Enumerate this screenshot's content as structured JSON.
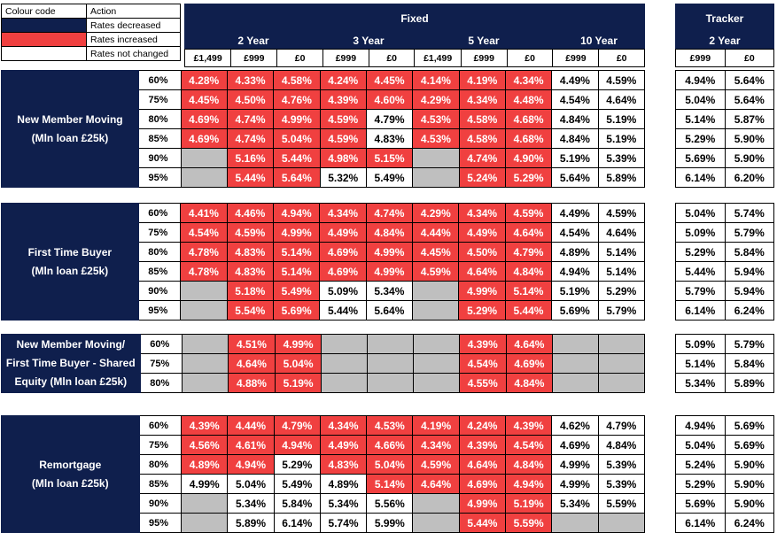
{
  "legend": {
    "header_code": "Colour code",
    "header_action": "Action",
    "rows": [
      {
        "color": "#0f1f4d",
        "label": "Rates decreased"
      },
      {
        "color": "#f04040",
        "label": "Rates increased"
      },
      {
        "color": "#ffffff",
        "label": "Rates not changed"
      }
    ]
  },
  "fixed_title": "Fixed",
  "tracker_title": "Tracker",
  "terms": [
    "2 Year",
    "3 Year",
    "5 Year",
    "10 Year"
  ],
  "tracker_term": "2 Year",
  "fees": [
    "£1,499",
    "£999",
    "£0",
    "£999",
    "£0",
    "£1,499",
    "£999",
    "£0",
    "£999",
    "£0"
  ],
  "tracker_fees": [
    "£999",
    "£0"
  ],
  "sections": [
    {
      "title_line1": "New Member Moving",
      "title_line2": "(Mln loan £25k)",
      "title_line3": "",
      "rows": [
        {
          "ltv": "60%",
          "fixed": [
            [
              "4.28%",
              "r"
            ],
            [
              "4.33%",
              "r"
            ],
            [
              "4.58%",
              "r"
            ],
            [
              "4.24%",
              "r"
            ],
            [
              "4.45%",
              "r"
            ],
            [
              "4.14%",
              "r"
            ],
            [
              "4.19%",
              "r"
            ],
            [
              "4.34%",
              "r"
            ],
            [
              "4.49%",
              "w"
            ],
            [
              "4.59%",
              "w"
            ]
          ],
          "tracker": [
            "4.94%",
            "5.64%"
          ]
        },
        {
          "ltv": "75%",
          "fixed": [
            [
              "4.45%",
              "r"
            ],
            [
              "4.50%",
              "r"
            ],
            [
              "4.76%",
              "r"
            ],
            [
              "4.39%",
              "r"
            ],
            [
              "4.60%",
              "r"
            ],
            [
              "4.29%",
              "r"
            ],
            [
              "4.34%",
              "r"
            ],
            [
              "4.48%",
              "r"
            ],
            [
              "4.54%",
              "w"
            ],
            [
              "4.64%",
              "w"
            ]
          ],
          "tracker": [
            "5.04%",
            "5.64%"
          ]
        },
        {
          "ltv": "80%",
          "fixed": [
            [
              "4.69%",
              "r"
            ],
            [
              "4.74%",
              "r"
            ],
            [
              "4.99%",
              "r"
            ],
            [
              "4.59%",
              "r"
            ],
            [
              "4.79%",
              "w"
            ],
            [
              "4.53%",
              "r"
            ],
            [
              "4.58%",
              "r"
            ],
            [
              "4.68%",
              "r"
            ],
            [
              "4.84%",
              "w"
            ],
            [
              "5.19%",
              "w"
            ]
          ],
          "tracker": [
            "5.14%",
            "5.87%"
          ]
        },
        {
          "ltv": "85%",
          "fixed": [
            [
              "4.69%",
              "r"
            ],
            [
              "4.74%",
              "r"
            ],
            [
              "5.04%",
              "r"
            ],
            [
              "4.59%",
              "r"
            ],
            [
              "4.83%",
              "w"
            ],
            [
              "4.53%",
              "r"
            ],
            [
              "4.58%",
              "r"
            ],
            [
              "4.68%",
              "r"
            ],
            [
              "4.84%",
              "w"
            ],
            [
              "5.19%",
              "w"
            ]
          ],
          "tracker": [
            "5.29%",
            "5.90%"
          ]
        },
        {
          "ltv": "90%",
          "fixed": [
            [
              "",
              "g"
            ],
            [
              "5.16%",
              "r"
            ],
            [
              "5.44%",
              "r"
            ],
            [
              "4.98%",
              "r"
            ],
            [
              "5.15%",
              "r"
            ],
            [
              "",
              "g"
            ],
            [
              "4.74%",
              "r"
            ],
            [
              "4.90%",
              "r"
            ],
            [
              "5.19%",
              "w"
            ],
            [
              "5.39%",
              "w"
            ]
          ],
          "tracker": [
            "5.69%",
            "5.90%"
          ]
        },
        {
          "ltv": "95%",
          "fixed": [
            [
              "",
              "g"
            ],
            [
              "5.44%",
              "r"
            ],
            [
              "5.64%",
              "r"
            ],
            [
              "5.32%",
              "w"
            ],
            [
              "5.49%",
              "w"
            ],
            [
              "",
              "g"
            ],
            [
              "5.24%",
              "r"
            ],
            [
              "5.29%",
              "r"
            ],
            [
              "5.64%",
              "w"
            ],
            [
              "5.89%",
              "w"
            ]
          ],
          "tracker": [
            "6.14%",
            "6.20%"
          ]
        }
      ]
    },
    {
      "title_line1": "First Time Buyer",
      "title_line2": "(Mln loan £25k)",
      "title_line3": "",
      "rows": [
        {
          "ltv": "60%",
          "fixed": [
            [
              "4.41%",
              "r"
            ],
            [
              "4.46%",
              "r"
            ],
            [
              "4.94%",
              "r"
            ],
            [
              "4.34%",
              "r"
            ],
            [
              "4.74%",
              "r"
            ],
            [
              "4.29%",
              "r"
            ],
            [
              "4.34%",
              "r"
            ],
            [
              "4.59%",
              "r"
            ],
            [
              "4.49%",
              "w"
            ],
            [
              "4.59%",
              "w"
            ]
          ],
          "tracker": [
            "5.04%",
            "5.74%"
          ]
        },
        {
          "ltv": "75%",
          "fixed": [
            [
              "4.54%",
              "r"
            ],
            [
              "4.59%",
              "r"
            ],
            [
              "4.99%",
              "r"
            ],
            [
              "4.49%",
              "r"
            ],
            [
              "4.84%",
              "r"
            ],
            [
              "4.44%",
              "r"
            ],
            [
              "4.49%",
              "r"
            ],
            [
              "4.64%",
              "r"
            ],
            [
              "4.54%",
              "w"
            ],
            [
              "4.64%",
              "w"
            ]
          ],
          "tracker": [
            "5.09%",
            "5.79%"
          ]
        },
        {
          "ltv": "80%",
          "fixed": [
            [
              "4.78%",
              "r"
            ],
            [
              "4.83%",
              "r"
            ],
            [
              "5.14%",
              "r"
            ],
            [
              "4.69%",
              "r"
            ],
            [
              "4.99%",
              "r"
            ],
            [
              "4.45%",
              "r"
            ],
            [
              "4.50%",
              "r"
            ],
            [
              "4.79%",
              "r"
            ],
            [
              "4.89%",
              "w"
            ],
            [
              "5.14%",
              "w"
            ]
          ],
          "tracker": [
            "5.29%",
            "5.84%"
          ]
        },
        {
          "ltv": "85%",
          "fixed": [
            [
              "4.78%",
              "r"
            ],
            [
              "4.83%",
              "r"
            ],
            [
              "5.14%",
              "r"
            ],
            [
              "4.69%",
              "r"
            ],
            [
              "4.99%",
              "r"
            ],
            [
              "4.59%",
              "r"
            ],
            [
              "4.64%",
              "r"
            ],
            [
              "4.84%",
              "r"
            ],
            [
              "4.94%",
              "w"
            ],
            [
              "5.14%",
              "w"
            ]
          ],
          "tracker": [
            "5.44%",
            "5.94%"
          ]
        },
        {
          "ltv": "90%",
          "fixed": [
            [
              "",
              "g"
            ],
            [
              "5.18%",
              "r"
            ],
            [
              "5.49%",
              "r"
            ],
            [
              "5.09%",
              "w"
            ],
            [
              "5.34%",
              "w"
            ],
            [
              "",
              "g"
            ],
            [
              "4.99%",
              "r"
            ],
            [
              "5.14%",
              "r"
            ],
            [
              "5.19%",
              "w"
            ],
            [
              "5.29%",
              "w"
            ]
          ],
          "tracker": [
            "5.79%",
            "5.94%"
          ]
        },
        {
          "ltv": "95%",
          "fixed": [
            [
              "",
              "g"
            ],
            [
              "5.54%",
              "r"
            ],
            [
              "5.69%",
              "r"
            ],
            [
              "5.44%",
              "w"
            ],
            [
              "5.64%",
              "w"
            ],
            [
              "",
              "g"
            ],
            [
              "5.29%",
              "r"
            ],
            [
              "5.44%",
              "r"
            ],
            [
              "5.69%",
              "w"
            ],
            [
              "5.79%",
              "w"
            ]
          ],
          "tracker": [
            "6.14%",
            "6.24%"
          ]
        }
      ]
    },
    {
      "title_line1": "New Member Moving/",
      "title_line2": "First Time Buyer - Shared",
      "title_line3": "Equity (Mln loan £25k)",
      "rows": [
        {
          "ltv": "60%",
          "fixed": [
            [
              "",
              "g"
            ],
            [
              "4.51%",
              "r"
            ],
            [
              "4.99%",
              "r"
            ],
            [
              "",
              "g"
            ],
            [
              "",
              "g"
            ],
            [
              "",
              "g"
            ],
            [
              "4.39%",
              "r"
            ],
            [
              "4.64%",
              "r"
            ],
            [
              "",
              "g"
            ],
            [
              "",
              "g"
            ]
          ],
          "tracker": [
            "5.09%",
            "5.79%"
          ]
        },
        {
          "ltv": "75%",
          "fixed": [
            [
              "",
              "g"
            ],
            [
              "4.64%",
              "r"
            ],
            [
              "5.04%",
              "r"
            ],
            [
              "",
              "g"
            ],
            [
              "",
              "g"
            ],
            [
              "",
              "g"
            ],
            [
              "4.54%",
              "r"
            ],
            [
              "4.69%",
              "r"
            ],
            [
              "",
              "g"
            ],
            [
              "",
              "g"
            ]
          ],
          "tracker": [
            "5.14%",
            "5.84%"
          ]
        },
        {
          "ltv": "80%",
          "fixed": [
            [
              "",
              "g"
            ],
            [
              "4.88%",
              "r"
            ],
            [
              "5.19%",
              "r"
            ],
            [
              "",
              "g"
            ],
            [
              "",
              "g"
            ],
            [
              "",
              "g"
            ],
            [
              "4.55%",
              "r"
            ],
            [
              "4.84%",
              "r"
            ],
            [
              "",
              "g"
            ],
            [
              "",
              "g"
            ]
          ],
          "tracker": [
            "5.34%",
            "5.89%"
          ]
        }
      ]
    },
    {
      "title_line1": "Remortgage",
      "title_line2": "(Mln loan £25k)",
      "title_line3": "",
      "rows": [
        {
          "ltv": "60%",
          "fixed": [
            [
              "4.39%",
              "r"
            ],
            [
              "4.44%",
              "r"
            ],
            [
              "4.79%",
              "r"
            ],
            [
              "4.34%",
              "r"
            ],
            [
              "4.53%",
              "r"
            ],
            [
              "4.19%",
              "r"
            ],
            [
              "4.24%",
              "r"
            ],
            [
              "4.39%",
              "r"
            ],
            [
              "4.62%",
              "w"
            ],
            [
              "4.79%",
              "w"
            ]
          ],
          "tracker": [
            "4.94%",
            "5.69%"
          ]
        },
        {
          "ltv": "75%",
          "fixed": [
            [
              "4.56%",
              "r"
            ],
            [
              "4.61%",
              "r"
            ],
            [
              "4.94%",
              "r"
            ],
            [
              "4.49%",
              "r"
            ],
            [
              "4.66%",
              "r"
            ],
            [
              "4.34%",
              "r"
            ],
            [
              "4.39%",
              "r"
            ],
            [
              "4.54%",
              "r"
            ],
            [
              "4.69%",
              "w"
            ],
            [
              "4.84%",
              "w"
            ]
          ],
          "tracker": [
            "5.04%",
            "5.69%"
          ]
        },
        {
          "ltv": "80%",
          "fixed": [
            [
              "4.89%",
              "r"
            ],
            [
              "4.94%",
              "r"
            ],
            [
              "5.29%",
              "w"
            ],
            [
              "4.83%",
              "r"
            ],
            [
              "5.04%",
              "r"
            ],
            [
              "4.59%",
              "r"
            ],
            [
              "4.64%",
              "r"
            ],
            [
              "4.84%",
              "r"
            ],
            [
              "4.99%",
              "w"
            ],
            [
              "5.39%",
              "w"
            ]
          ],
          "tracker": [
            "5.24%",
            "5.90%"
          ]
        },
        {
          "ltv": "85%",
          "fixed": [
            [
              "4.99%",
              "w"
            ],
            [
              "5.04%",
              "w"
            ],
            [
              "5.49%",
              "w"
            ],
            [
              "4.89%",
              "w"
            ],
            [
              "5.14%",
              "r"
            ],
            [
              "4.64%",
              "r"
            ],
            [
              "4.69%",
              "r"
            ],
            [
              "4.94%",
              "r"
            ],
            [
              "4.99%",
              "w"
            ],
            [
              "5.39%",
              "w"
            ]
          ],
          "tracker": [
            "5.29%",
            "5.90%"
          ]
        },
        {
          "ltv": "90%",
          "fixed": [
            [
              "",
              "g"
            ],
            [
              "5.34%",
              "w"
            ],
            [
              "5.84%",
              "w"
            ],
            [
              "5.34%",
              "w"
            ],
            [
              "5.56%",
              "w"
            ],
            [
              "",
              "g"
            ],
            [
              "4.99%",
              "r"
            ],
            [
              "5.19%",
              "r"
            ],
            [
              "5.34%",
              "w"
            ],
            [
              "5.59%",
              "w"
            ]
          ],
          "tracker": [
            "5.69%",
            "5.90%"
          ]
        },
        {
          "ltv": "95%",
          "fixed": [
            [
              "",
              "g"
            ],
            [
              "5.89%",
              "w"
            ],
            [
              "6.14%",
              "w"
            ],
            [
              "5.74%",
              "w"
            ],
            [
              "5.99%",
              "w"
            ],
            [
              "",
              "g"
            ],
            [
              "5.44%",
              "r"
            ],
            [
              "5.59%",
              "r"
            ],
            [
              "",
              "g"
            ],
            [
              "",
              "g"
            ]
          ],
          "tracker": [
            "6.14%",
            "6.24%"
          ]
        }
      ]
    }
  ]
}
